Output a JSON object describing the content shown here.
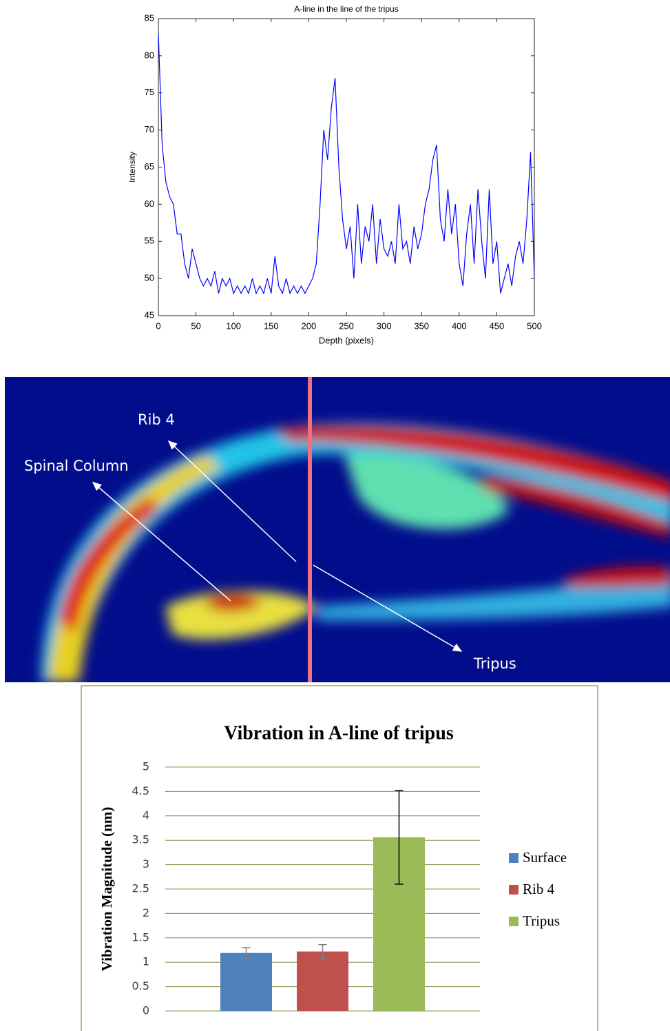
{
  "chart_data": [
    {
      "type": "line",
      "title": "A-line in the line of the tripus",
      "xlabel": "Depth (pixels)",
      "ylabel": "Intensity",
      "color": "#0000ff",
      "x": [
        0,
        5,
        10,
        15,
        20,
        25,
        30,
        35,
        40,
        45,
        50,
        55,
        60,
        65,
        70,
        75,
        80,
        85,
        90,
        95,
        100,
        105,
        110,
        115,
        120,
        125,
        130,
        135,
        140,
        145,
        150,
        155,
        160,
        165,
        170,
        175,
        180,
        185,
        190,
        195,
        200,
        205,
        210,
        215,
        220,
        225,
        230,
        235,
        240,
        245,
        250,
        255,
        260,
        265,
        270,
        275,
        280,
        285,
        290,
        295,
        300,
        305,
        310,
        315,
        320,
        325,
        330,
        335,
        340,
        345,
        350,
        355,
        360,
        365,
        370,
        375,
        380,
        385,
        390,
        395,
        400,
        405,
        410,
        415,
        420,
        425,
        430,
        435,
        440,
        445,
        450,
        455,
        460,
        465,
        470,
        475,
        480,
        485,
        490,
        495,
        500
      ],
      "values": [
        83,
        68,
        63,
        61,
        60,
        56,
        56,
        52,
        50,
        54,
        52,
        50,
        49,
        50,
        49,
        51,
        48,
        50,
        49,
        50,
        48,
        49,
        48,
        49,
        48,
        50,
        48,
        49,
        48,
        50,
        48,
        53,
        49,
        48,
        50,
        48,
        49,
        48,
        49,
        48,
        49,
        50,
        52,
        60,
        70,
        66,
        73,
        77,
        65,
        58,
        54,
        57,
        50,
        60,
        52,
        57,
        55,
        60,
        52,
        58,
        54,
        53,
        55,
        52,
        60,
        54,
        55,
        52,
        57,
        54,
        56,
        60,
        62,
        66,
        68,
        58,
        55,
        62,
        56,
        60,
        52,
        49,
        56,
        60,
        52,
        62,
        55,
        50,
        62,
        52,
        55,
        48,
        50,
        52,
        49,
        53,
        55,
        52,
        58,
        67,
        50
      ],
      "xlim": [
        0,
        500
      ],
      "xticks": [
        0,
        50,
        100,
        150,
        200,
        250,
        300,
        350,
        400,
        450,
        500
      ],
      "ylim": [
        45,
        85
      ],
      "yticks": [
        45,
        50,
        55,
        60,
        65,
        70,
        75,
        80,
        85
      ]
    },
    {
      "type": "bar",
      "title": "Vibration in A-line of tripus",
      "ylabel": "Vibration Magnitude (nm)",
      "series": [
        {
          "name": "Surface",
          "color": "#4f81bd",
          "error_color": "#7f7f7f",
          "values": [
            1.19
          ],
          "errors": [
            0.11
          ]
        },
        {
          "name": "Rib 4",
          "color": "#c0504d",
          "error_color": "#7f7f7f",
          "values": [
            1.22
          ],
          "errors": [
            0.14
          ]
        },
        {
          "name": "Tripus",
          "color": "#9bbb59",
          "error_color": "#000000",
          "values": [
            3.56
          ],
          "errors": [
            0.96
          ]
        }
      ],
      "ylim": [
        0,
        5
      ],
      "yticks": [
        0,
        0.5,
        1,
        1.5,
        2,
        2.5,
        3,
        3.5,
        4,
        4.5,
        5
      ],
      "grid": true,
      "legend": "right"
    }
  ],
  "image": {
    "labels": [
      "Rib 4",
      "Spinal Column",
      "Tripus"
    ]
  }
}
